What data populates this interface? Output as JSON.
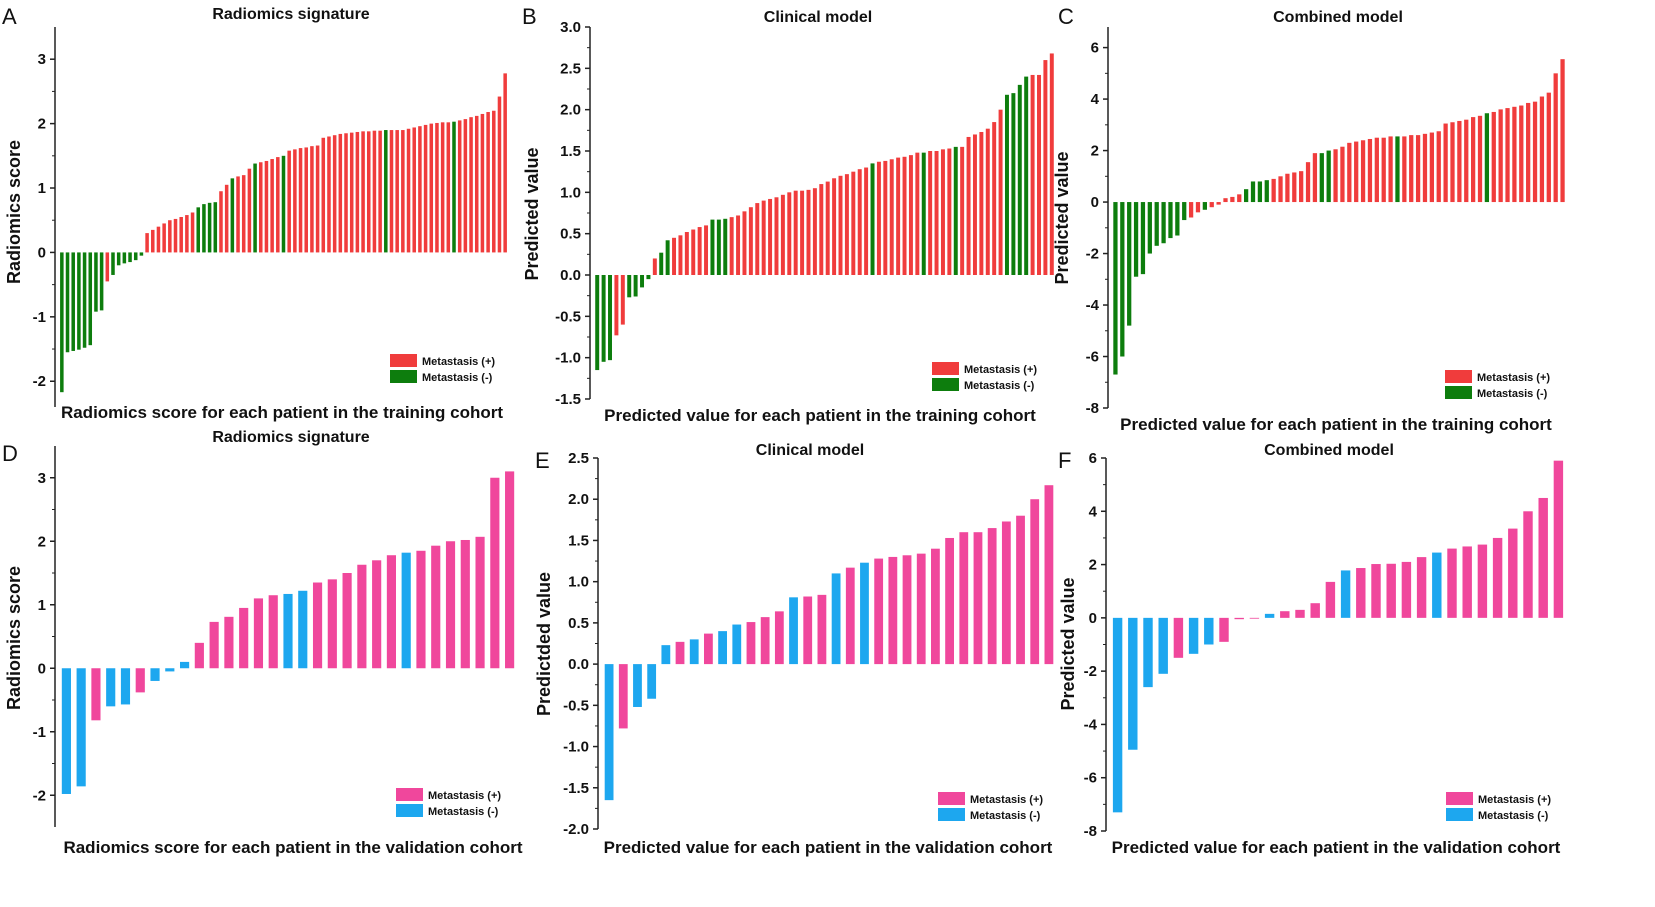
{
  "colors": {
    "training_pos": "#f03c3c",
    "training_neg": "#0d7d0d",
    "validation_pos": "#f0479c",
    "validation_neg": "#1da7ef"
  },
  "chart_data": [
    {
      "id": "A",
      "letter": "A",
      "type": "bar",
      "title": "Radiomics signature",
      "xlabel": "Radiomics score for each patient in the training cohort",
      "ylabel": "Radiomics score",
      "ylim": [
        -2.4,
        3.5
      ],
      "yticks": [
        -2,
        -1,
        0,
        1,
        2,
        3
      ],
      "ytick_labels": [
        "-2",
        "-1",
        "0",
        "1",
        "2",
        "3"
      ],
      "legend": [
        "Metastasis (+)",
        "Metastasis (-)"
      ],
      "palette": "training",
      "values": [
        -2.17,
        -1.55,
        -1.53,
        -1.51,
        -1.48,
        -1.44,
        -0.92,
        -0.9,
        -0.45,
        -0.35,
        -0.2,
        -0.17,
        -0.15,
        -0.12,
        -0.05,
        0.3,
        0.35,
        0.4,
        0.45,
        0.5,
        0.52,
        0.55,
        0.58,
        0.62,
        0.7,
        0.75,
        0.77,
        0.78,
        0.95,
        1.05,
        1.15,
        1.18,
        1.2,
        1.3,
        1.38,
        1.4,
        1.42,
        1.45,
        1.48,
        1.5,
        1.58,
        1.6,
        1.62,
        1.63,
        1.65,
        1.66,
        1.78,
        1.8,
        1.82,
        1.84,
        1.85,
        1.86,
        1.87,
        1.88,
        1.88,
        1.89,
        1.89,
        1.9,
        1.9,
        1.9,
        1.9,
        1.92,
        1.94,
        1.96,
        1.98,
        2.0,
        2.01,
        2.02,
        2.02,
        2.03,
        2.05,
        2.07,
        2.1,
        2.12,
        2.15,
        2.18,
        2.2,
        2.42,
        2.78
      ],
      "metastasis": [
        "-",
        "-",
        "-",
        "-",
        "-",
        "-",
        "-",
        "-",
        "+",
        "-",
        "-",
        "-",
        "-",
        "-",
        "-",
        "+",
        "+",
        "+",
        "+",
        "+",
        "+",
        "+",
        "+",
        "+",
        "-",
        "-",
        "-",
        "-",
        "+",
        "+",
        "-",
        "+",
        "+",
        "+",
        "-",
        "+",
        "+",
        "+",
        "+",
        "-",
        "+",
        "+",
        "+",
        "+",
        "+",
        "+",
        "+",
        "+",
        "+",
        "+",
        "+",
        "+",
        "+",
        "+",
        "+",
        "+",
        "+",
        "-",
        "+",
        "+",
        "+",
        "+",
        "+",
        "+",
        "+",
        "+",
        "+",
        "+",
        "+",
        "-",
        "+",
        "+",
        "+",
        "+",
        "+",
        "+",
        "+",
        "+",
        "+"
      ]
    },
    {
      "id": "B",
      "letter": "B",
      "type": "bar",
      "title": "Clinical model",
      "xlabel": "Predicted value for each patient in the training cohort",
      "ylabel": "Predicted value",
      "ylim": [
        -1.5,
        3.0
      ],
      "yticks": [
        -1.5,
        -1.0,
        -0.5,
        0.0,
        0.5,
        1.0,
        1.5,
        2.0,
        2.5,
        3.0
      ],
      "ytick_labels": [
        "-1.5",
        "-1.0",
        "-0.5",
        "0.0",
        "0.5",
        "1.0",
        "1.5",
        "2.0",
        "2.5",
        "3.0"
      ],
      "legend": [
        "Metastasis (+)",
        "Metastasis (-)"
      ],
      "palette": "training",
      "values": [
        -1.15,
        -1.05,
        -1.03,
        -0.73,
        -0.6,
        -0.27,
        -0.26,
        -0.15,
        -0.05,
        0.2,
        0.27,
        0.42,
        0.45,
        0.48,
        0.52,
        0.55,
        0.58,
        0.6,
        0.67,
        0.67,
        0.68,
        0.7,
        0.72,
        0.77,
        0.82,
        0.87,
        0.9,
        0.92,
        0.94,
        0.97,
        1.0,
        1.02,
        1.02,
        1.03,
        1.05,
        1.1,
        1.13,
        1.17,
        1.2,
        1.22,
        1.25,
        1.28,
        1.3,
        1.35,
        1.37,
        1.38,
        1.4,
        1.42,
        1.43,
        1.45,
        1.48,
        1.48,
        1.5,
        1.5,
        1.52,
        1.53,
        1.55,
        1.55,
        1.67,
        1.7,
        1.73,
        1.77,
        1.85,
        2.0,
        2.18,
        2.2,
        2.3,
        2.4,
        2.42,
        2.42,
        2.6,
        2.68
      ],
      "metastasis": [
        "-",
        "-",
        "-",
        "+",
        "+",
        "-",
        "-",
        "-",
        "-",
        "+",
        "-",
        "-",
        "+",
        "+",
        "+",
        "+",
        "+",
        "+",
        "-",
        "-",
        "-",
        "+",
        "+",
        "+",
        "+",
        "+",
        "+",
        "+",
        "+",
        "+",
        "+",
        "+",
        "+",
        "+",
        "+",
        "+",
        "+",
        "+",
        "+",
        "+",
        "+",
        "+",
        "+",
        "-",
        "+",
        "+",
        "+",
        "+",
        "+",
        "+",
        "+",
        "-",
        "+",
        "+",
        "+",
        "+",
        "-",
        "+",
        "+",
        "+",
        "+",
        "+",
        "+",
        "+",
        "-",
        "-",
        "-",
        "-",
        "+",
        "+",
        "+",
        "+"
      ]
    },
    {
      "id": "C",
      "letter": "C",
      "type": "bar",
      "title": "Combined model",
      "xlabel": "Predicted value for each patient in the training cohort",
      "ylabel": "Predicted value",
      "ylim": [
        -8,
        6.8
      ],
      "yticks": [
        -8,
        -6,
        -4,
        -2,
        0,
        2,
        4,
        6
      ],
      "ytick_labels": [
        "-8",
        "-6",
        "-4",
        "-2",
        "0",
        "2",
        "4",
        "6"
      ],
      "legend": [
        "Metastasis (+)",
        "Metastasis (-)"
      ],
      "palette": "training",
      "values": [
        -6.7,
        -6.0,
        -4.8,
        -2.9,
        -2.8,
        -2.0,
        -1.7,
        -1.6,
        -1.4,
        -1.3,
        -0.7,
        -0.6,
        -0.4,
        -0.3,
        -0.2,
        -0.1,
        0.15,
        0.2,
        0.3,
        0.5,
        0.8,
        0.8,
        0.85,
        0.9,
        1.0,
        1.1,
        1.15,
        1.2,
        1.55,
        1.9,
        1.9,
        2.0,
        2.05,
        2.15,
        2.3,
        2.35,
        2.4,
        2.45,
        2.5,
        2.5,
        2.55,
        2.55,
        2.55,
        2.6,
        2.6,
        2.65,
        2.7,
        2.75,
        3.05,
        3.1,
        3.15,
        3.2,
        3.3,
        3.35,
        3.45,
        3.5,
        3.6,
        3.65,
        3.7,
        3.75,
        3.85,
        3.9,
        4.1,
        4.25,
        5.0,
        5.55
      ],
      "metastasis": [
        "-",
        "-",
        "-",
        "-",
        "-",
        "-",
        "-",
        "-",
        "-",
        "-",
        "-",
        "+",
        "+",
        "-",
        "+",
        "+",
        "+",
        "+",
        "+",
        "-",
        "-",
        "-",
        "-",
        "+",
        "+",
        "+",
        "+",
        "+",
        "+",
        "+",
        "-",
        "-",
        "+",
        "+",
        "+",
        "+",
        "+",
        "+",
        "+",
        "+",
        "+",
        "-",
        "+",
        "+",
        "+",
        "+",
        "+",
        "+",
        "+",
        "+",
        "+",
        "+",
        "+",
        "+",
        "-",
        "+",
        "+",
        "+",
        "+",
        "+",
        "+",
        "+",
        "+",
        "+",
        "+",
        "+"
      ]
    },
    {
      "id": "D",
      "letter": "D",
      "type": "bar",
      "title": "Radiomics signature",
      "xlabel": "Radiomics score for each patient in the validation cohort",
      "ylabel": "Radiomics score",
      "ylim": [
        -2.5,
        3.5
      ],
      "yticks": [
        -2,
        -1,
        0,
        1,
        2,
        3
      ],
      "ytick_labels": [
        "-2",
        "-1",
        "0",
        "1",
        "2",
        "3"
      ],
      "legend": [
        "Metastasis (+)",
        "Metastasis (-)"
      ],
      "palette": "validation",
      "values": [
        -1.98,
        -1.86,
        -0.82,
        -0.6,
        -0.57,
        -0.38,
        -0.2,
        -0.05,
        0.1,
        0.4,
        0.73,
        0.81,
        0.95,
        1.1,
        1.15,
        1.17,
        1.22,
        1.35,
        1.4,
        1.5,
        1.63,
        1.7,
        1.78,
        1.82,
        1.85,
        1.93,
        2.0,
        2.02,
        2.07,
        3.0,
        3.1
      ],
      "metastasis": [
        "-",
        "-",
        "+",
        "-",
        "-",
        "+",
        "-",
        "-",
        "-",
        "+",
        "+",
        "+",
        "+",
        "+",
        "+",
        "-",
        "-",
        "+",
        "+",
        "+",
        "+",
        "+",
        "+",
        "-",
        "+",
        "+",
        "+",
        "+",
        "+",
        "+",
        "+"
      ]
    },
    {
      "id": "E",
      "letter": "E",
      "type": "bar",
      "title": "Clinical model",
      "xlabel": "Predicted value for each patient in the validation cohort",
      "ylabel": "Predictded value",
      "ylim": [
        -2.0,
        2.5
      ],
      "yticks": [
        -2.0,
        -1.5,
        -1.0,
        -0.5,
        0.0,
        0.5,
        1.0,
        1.5,
        2.0,
        2.5
      ],
      "ytick_labels": [
        "-2.0",
        "-1.5",
        "-1.0",
        "-0.5",
        "0.0",
        "0.5",
        "1.0",
        "1.5",
        "2.0",
        "2.5"
      ],
      "legend": [
        "Metastasis (+)",
        "Metastasis (-)"
      ],
      "palette": "validation",
      "values": [
        -1.65,
        -0.78,
        -0.52,
        -0.42,
        0.23,
        0.27,
        0.3,
        0.37,
        0.4,
        0.48,
        0.51,
        0.57,
        0.64,
        0.81,
        0.82,
        0.84,
        1.1,
        1.17,
        1.23,
        1.28,
        1.3,
        1.32,
        1.34,
        1.4,
        1.53,
        1.6,
        1.6,
        1.65,
        1.73,
        1.8,
        2.0,
        2.17
      ],
      "metastasis": [
        "-",
        "+",
        "-",
        "-",
        "-",
        "+",
        "-",
        "+",
        "-",
        "-",
        "+",
        "+",
        "+",
        "-",
        "+",
        "+",
        "-",
        "+",
        "-",
        "+",
        "+",
        "+",
        "+",
        "+",
        "+",
        "+",
        "+",
        "+",
        "+",
        "+",
        "+",
        "+"
      ]
    },
    {
      "id": "F",
      "letter": "F",
      "type": "bar",
      "title": "Combined model",
      "xlabel": "Predicted value for each patient in the validation cohort",
      "ylabel": "Predicted value",
      "ylim": [
        -8,
        6
      ],
      "yticks": [
        -8,
        -6,
        -4,
        -2,
        0,
        2,
        4,
        6
      ],
      "ytick_labels": [
        "-8",
        "-6",
        "-4",
        "-2",
        "0",
        "2",
        "4",
        "6"
      ],
      "legend": [
        "Metastasis (+)",
        "Metastasis (-)"
      ],
      "palette": "validation",
      "values": [
        -7.3,
        -4.95,
        -2.6,
        -2.1,
        -1.5,
        -1.35,
        -1.0,
        -0.9,
        -0.05,
        -0.03,
        0.15,
        0.25,
        0.3,
        0.55,
        1.35,
        1.78,
        1.87,
        2.02,
        2.03,
        2.1,
        2.28,
        2.45,
        2.6,
        2.68,
        2.75,
        3.0,
        3.35,
        4.0,
        4.5,
        5.9
      ],
      "metastasis": [
        "-",
        "-",
        "-",
        "-",
        "+",
        "-",
        "-",
        "+",
        "+",
        "+",
        "-",
        "+",
        "+",
        "+",
        "+",
        "-",
        "+",
        "+",
        "+",
        "+",
        "+",
        "-",
        "+",
        "+",
        "+",
        "+",
        "+",
        "+",
        "+",
        "+"
      ]
    }
  ]
}
